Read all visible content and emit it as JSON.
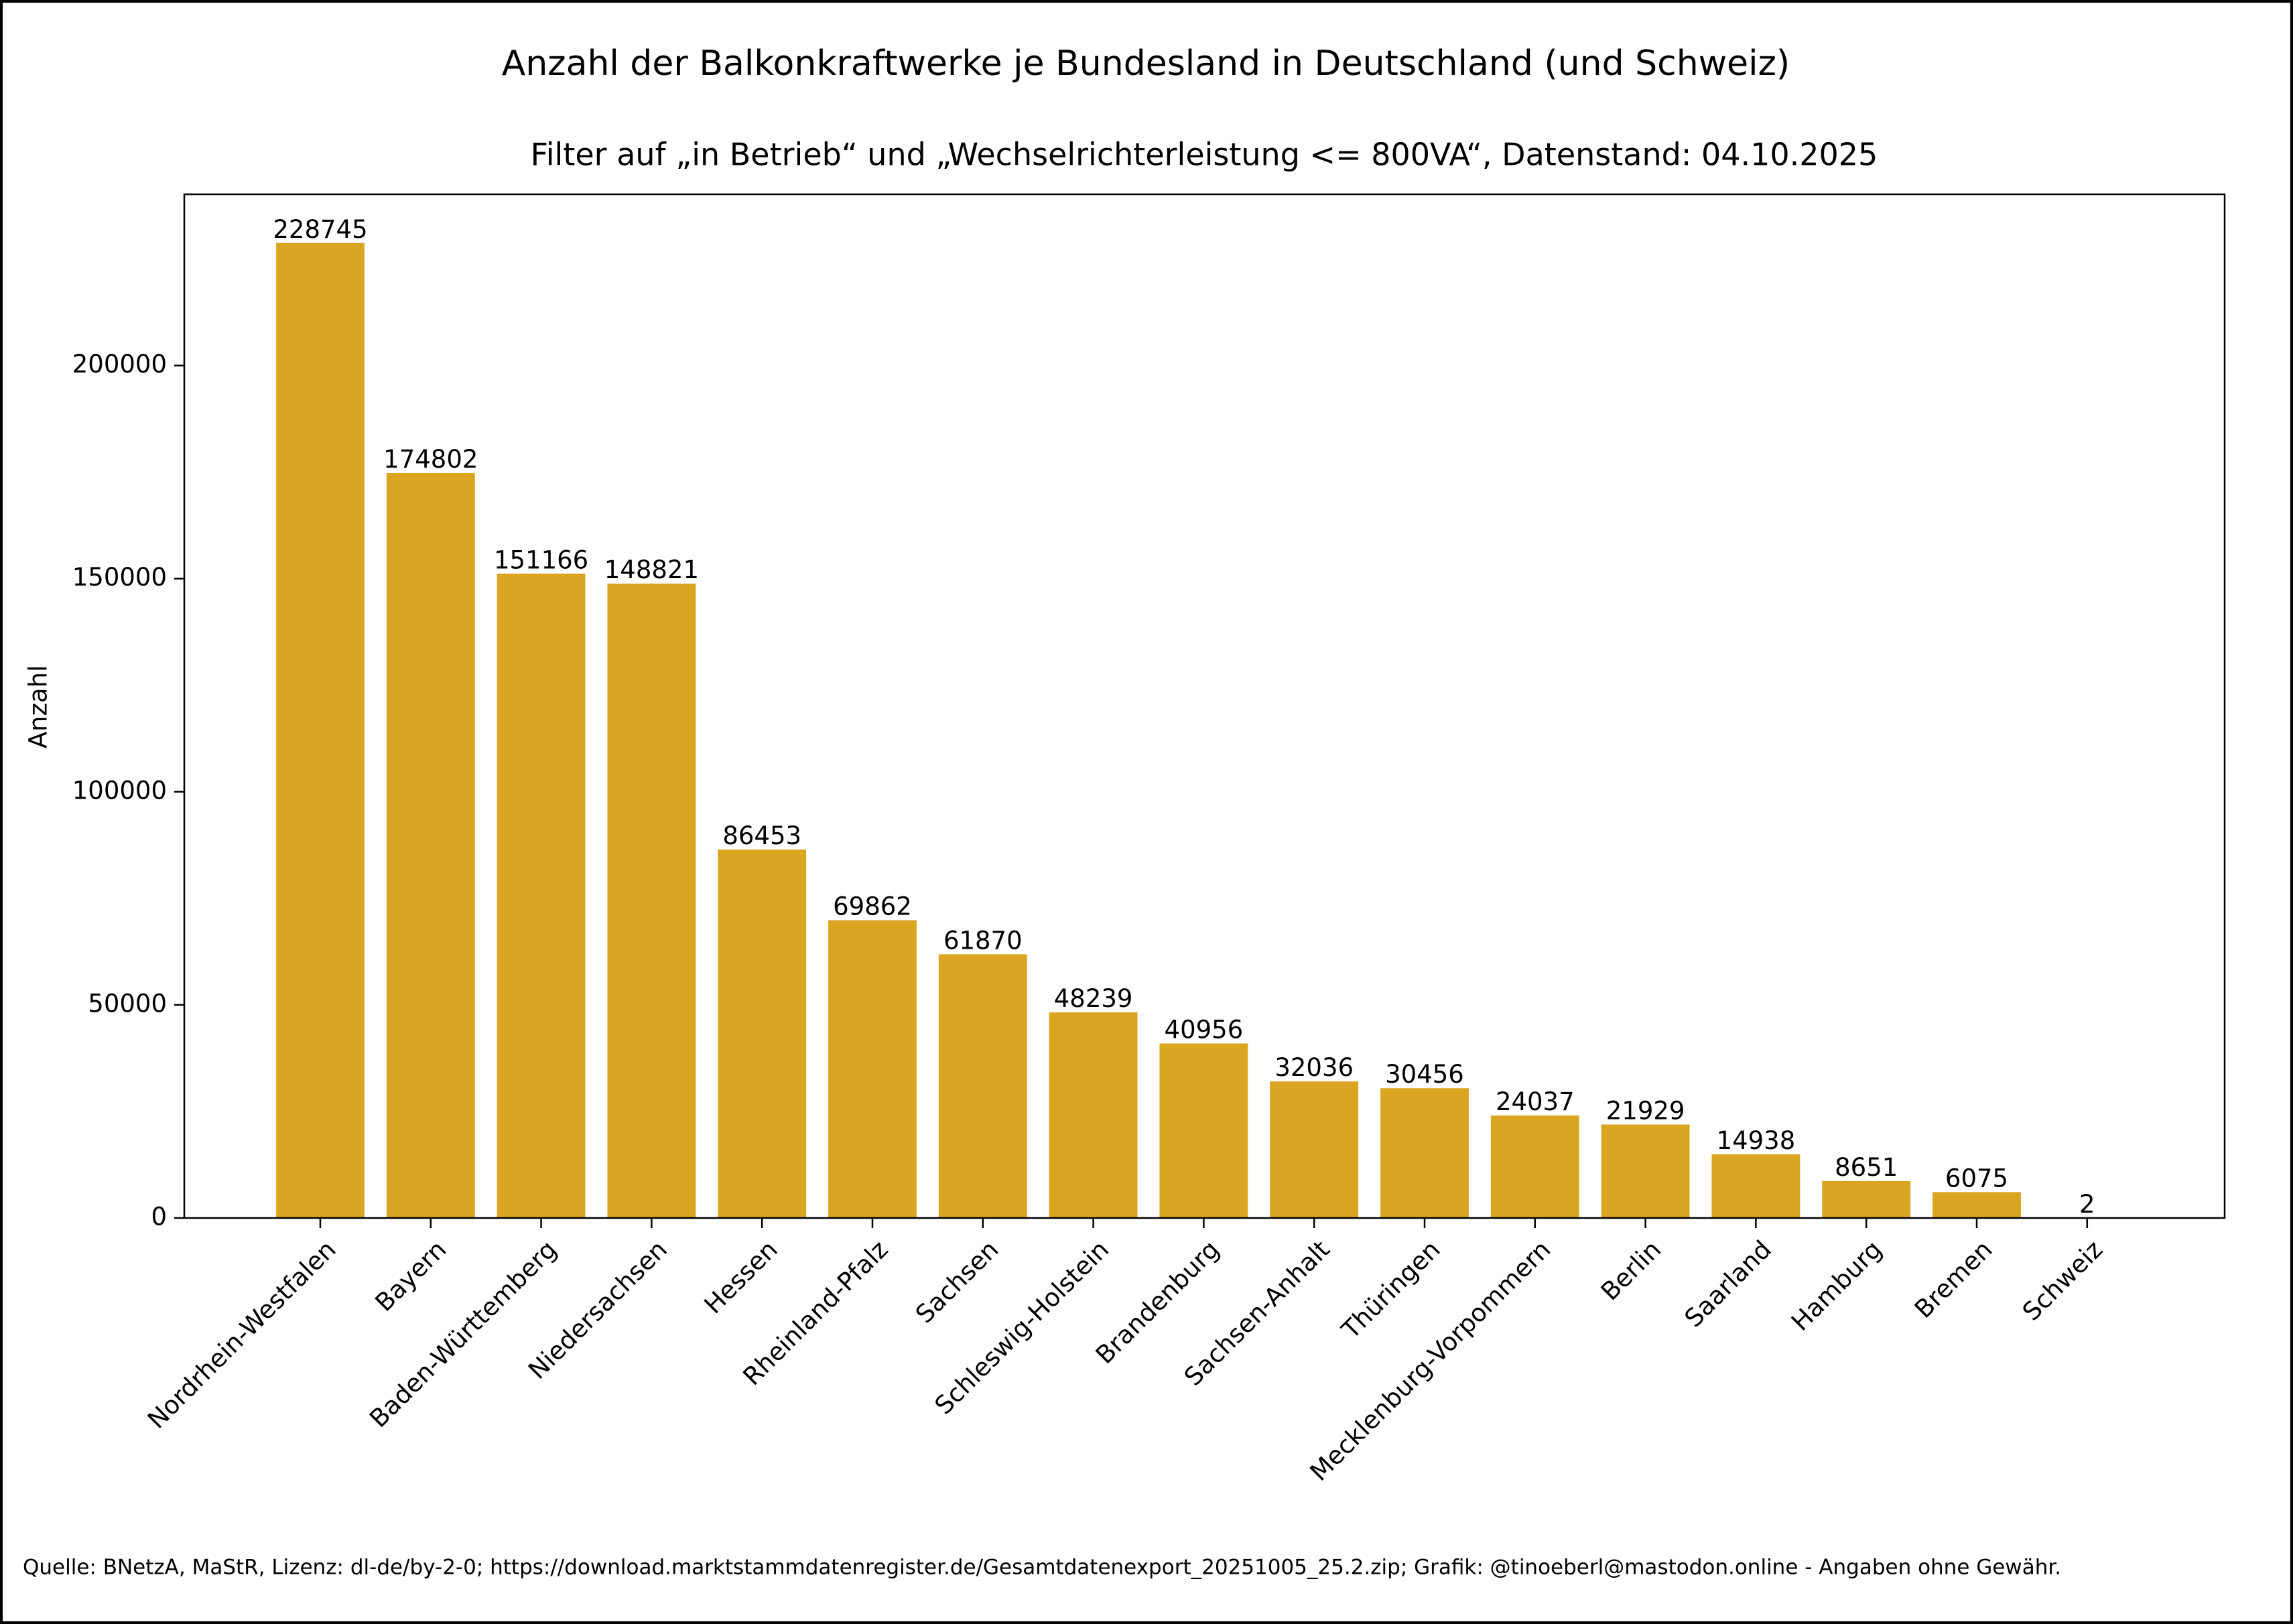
{
  "chart_data": {
    "type": "bar",
    "title": "Anzahl der Balkonkraftwerke je Bundesland in Deutschland (und Schweiz)",
    "subtitle": "Filter auf „in Betrieb“ und „Wechselrichterleistung <= 800VA“, Datenstand: 04.10.2025",
    "ylabel": "Anzahl",
    "categories": [
      "Nordrhein-Westfalen",
      "Bayern",
      "Baden-Württemberg",
      "Niedersachsen",
      "Hessen",
      "Rheinland-Pfalz",
      "Sachsen",
      "Schleswig-Holstein",
      "Brandenburg",
      "Sachsen-Anhalt",
      "Thüringen",
      "Mecklenburg-Vorpommern",
      "Berlin",
      "Saarland",
      "Hamburg",
      "Bremen",
      "Schweiz"
    ],
    "values": [
      228745,
      174802,
      151166,
      148821,
      86453,
      69862,
      61870,
      48239,
      40956,
      32036,
      30456,
      24037,
      21929,
      14938,
      8651,
      6075,
      2
    ],
    "color": "#daa520",
    "ylim": [
      0,
      240182
    ],
    "yticks": [
      0,
      50000,
      100000,
      150000,
      200000
    ],
    "grid": false,
    "source": "Quelle: BNetzA, MaStR, Lizenz: dl-de/by-2-0; https://download.marktstammdatenregister.de/Gesamtdatenexport_20251005_25.2.zip; Grafik: @tinoeberl@mastodon.online - Angaben ohne Gewähr."
  }
}
